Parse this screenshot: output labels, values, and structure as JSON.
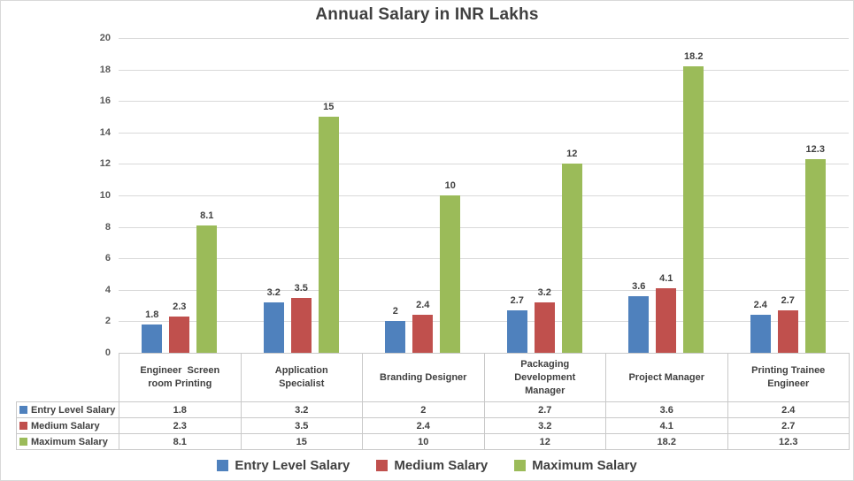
{
  "title": "Annual Salary in INR Lakhs",
  "chart_data": {
    "type": "bar",
    "title": "Annual Salary in INR Lakhs",
    "categories": [
      "Engineer  Screen room Printing",
      "Application Specialist",
      "Branding Designer",
      "Packaging Development Manager",
      "Project Manager",
      "Printing Trainee Engineer"
    ],
    "categories_display": [
      "Engineer  Screen\nroom Printing",
      "Application\nSpecialist",
      "Branding Designer",
      "Packaging\nDevelopment\nManager",
      "Project Manager",
      "Printing Trainee\nEngineer"
    ],
    "series": [
      {
        "name": "Entry Level Salary",
        "color": "#4F81BD",
        "values": [
          1.8,
          3.2,
          2,
          2.7,
          3.6,
          2.4
        ]
      },
      {
        "name": "Medium Salary",
        "color": "#C0504D",
        "values": [
          2.3,
          3.5,
          2.4,
          3.2,
          4.1,
          2.7
        ]
      },
      {
        "name": "Maximum Salary",
        "color": "#9BBB59",
        "values": [
          8.1,
          15,
          10,
          12,
          18.2,
          12.3
        ]
      }
    ],
    "ylim": [
      0,
      20
    ],
    "ytick_step": 2,
    "yticks": [
      0,
      2,
      4,
      6,
      8,
      10,
      12,
      14,
      16,
      18,
      20
    ],
    "grid": true,
    "data_labels": true,
    "legend_position": "bottom",
    "data_table_shown": true
  },
  "colors": {
    "gridline": "#d9d9d9",
    "axis_text": "#595959",
    "label_text": "#404040",
    "table_border": "#c9c9c9"
  }
}
